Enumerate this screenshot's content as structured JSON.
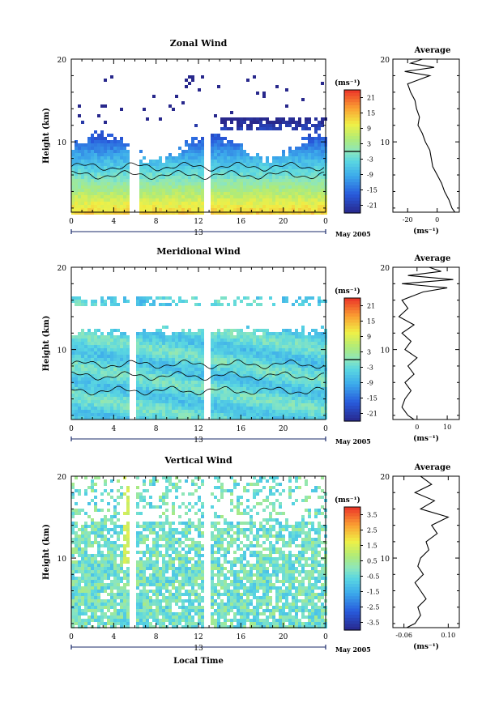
{
  "chart_data": [
    {
      "type": "heatmap",
      "title": "Zonal Wind",
      "ylabel": "Height (km)",
      "xlabel": "",
      "x_ticks": [
        "0",
        "4",
        "8",
        "12",
        "16",
        "20",
        "0"
      ],
      "y_ticks": [
        "20",
        "10"
      ],
      "xlim": [
        0,
        24
      ],
      "ylim": [
        1.5,
        20
      ],
      "day_label": "13",
      "month_label": "May 2005",
      "colorbar": {
        "unit": "(ms⁻¹)",
        "ticks": [
          "21",
          "15",
          "9",
          "3",
          "-3",
          "-9",
          "-15",
          "-21"
        ],
        "range": [
          -24,
          24
        ],
        "zero_line": 0
      },
      "profile": {
        "title": "Average",
        "xlabel": "(ms⁻¹)",
        "x_ticks": [
          "-20",
          "0"
        ],
        "xlim": [
          -30,
          15
        ],
        "y_ticks": [
          "20",
          "10"
        ],
        "heights": [
          1.5,
          2,
          3,
          4,
          5,
          6,
          7,
          8,
          9,
          10,
          11,
          12,
          13,
          14,
          15,
          16,
          17,
          18,
          18.5,
          19,
          19.5,
          20
        ],
        "values": [
          12,
          10,
          8,
          5,
          3,
          0,
          -3,
          -4,
          -5,
          -8,
          -10,
          -13,
          -12,
          -14,
          -15,
          -18,
          -20,
          -5,
          -22,
          -2,
          -18,
          -10
        ]
      },
      "ramp": "wind",
      "field": "zonal"
    },
    {
      "type": "heatmap",
      "title": "Meridional Wind",
      "ylabel": "Height (km)",
      "xlabel": "",
      "x_ticks": [
        "0",
        "4",
        "8",
        "12",
        "16",
        "20",
        "0"
      ],
      "y_ticks": [
        "20",
        "10"
      ],
      "xlim": [
        0,
        24
      ],
      "ylim": [
        1.5,
        20
      ],
      "day_label": "13",
      "month_label": "May 2005",
      "colorbar": {
        "unit": "(ms⁻¹)",
        "ticks": [
          "21",
          "15",
          "9",
          "3",
          "-3",
          "-9",
          "-15",
          "-21"
        ],
        "range": [
          -24,
          24
        ],
        "zero_line": 0
      },
      "profile": {
        "title": "Average",
        "xlabel": "(ms⁻¹)",
        "x_ticks": [
          "0",
          "10"
        ],
        "xlim": [
          -8,
          14
        ],
        "y_ticks": [
          "20",
          "10"
        ],
        "heights": [
          1.5,
          2,
          3,
          4,
          5,
          6,
          7,
          8,
          9,
          10,
          11,
          12,
          13,
          14,
          15,
          16,
          17,
          17.5,
          18,
          18.5,
          19,
          19.5,
          20
        ],
        "values": [
          -1,
          -3,
          -5,
          -4,
          -2,
          -4,
          -1,
          -3,
          0,
          -4,
          -2,
          -5,
          -1,
          -6,
          -3,
          -5,
          2,
          10,
          -5,
          12,
          -3,
          8,
          4
        ]
      },
      "ramp": "wind",
      "field": "meridional"
    },
    {
      "type": "heatmap",
      "title": "Vertical Wind",
      "ylabel": "Height (km)",
      "xlabel": "Local Time",
      "x_ticks": [
        "0",
        "4",
        "8",
        "12",
        "16",
        "20",
        "0"
      ],
      "y_ticks": [
        "20",
        "10"
      ],
      "xlim": [
        0,
        24
      ],
      "ylim": [
        1.5,
        20
      ],
      "day_label": "13",
      "month_label": "May 2005",
      "colorbar": {
        "unit": "(ms⁻¹)",
        "ticks": [
          "3.5",
          "2.5",
          "1.5",
          "0.5",
          "-0.5",
          "-1.5",
          "-2.5",
          "-3.5"
        ],
        "range": [
          -4,
          4
        ],
        "zero_line": null
      },
      "profile": {
        "title": "Average",
        "xlabel": "(ms⁻¹)",
        "x_ticks": [
          "-0.06",
          "0.10"
        ],
        "xlim": [
          -0.1,
          0.14
        ],
        "y_ticks": [
          "20",
          "10"
        ],
        "heights": [
          1.5,
          2,
          3,
          4,
          5,
          6,
          7,
          8,
          9,
          10,
          11,
          12,
          13,
          14,
          15,
          16,
          17,
          18,
          19,
          20
        ],
        "values": [
          -0.05,
          -0.02,
          0.0,
          -0.01,
          0.02,
          0.0,
          -0.02,
          0.01,
          -0.01,
          0.0,
          0.03,
          0.02,
          0.06,
          0.04,
          0.1,
          0.0,
          0.05,
          -0.02,
          0.04,
          0.0
        ]
      },
      "ramp": "wind",
      "field": "vertical"
    }
  ]
}
